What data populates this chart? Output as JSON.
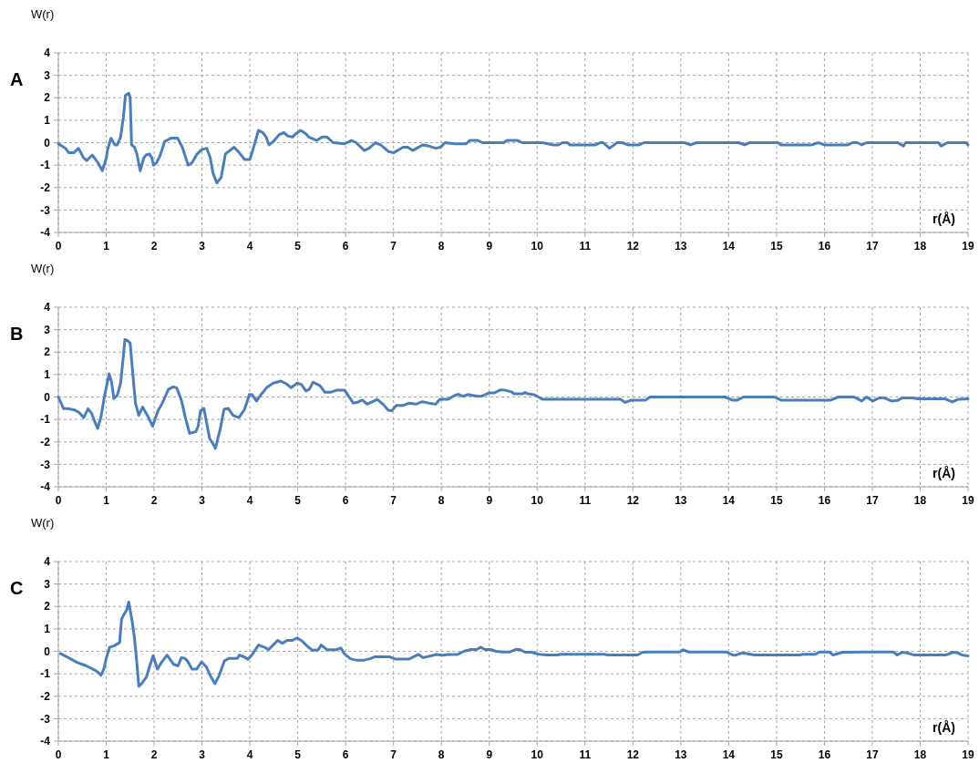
{
  "chart_data": [
    {
      "type": "line",
      "title": "A",
      "xlabel": "r(Å)",
      "ylabel": "W(r)",
      "xlim": [
        0,
        19
      ],
      "xticks": [
        0,
        1,
        2,
        3,
        4,
        5,
        6,
        7,
        8,
        9,
        10,
        11,
        12,
        13,
        14,
        15,
        16,
        17,
        18,
        19
      ],
      "ylim": [
        -4,
        4
      ],
      "yticks": [
        -4,
        -3,
        -2,
        -1,
        0,
        1,
        2,
        3,
        4
      ],
      "grid": true,
      "marker": "none",
      "line_style": "solid",
      "series": [
        {
          "color": "#4a7ebb",
          "x": [
            0,
            0.15,
            0.22,
            0.32,
            0.42,
            0.52,
            0.59,
            0.71,
            0.83,
            0.92,
            1.0,
            1.03,
            1.1,
            1.18,
            1.23,
            1.3,
            1.36,
            1.4,
            1.47,
            1.5,
            1.53,
            1.59,
            1.64,
            1.71,
            1.78,
            1.83,
            1.9,
            1.95,
            1.99,
            2.05,
            2.13,
            2.22,
            2.35,
            2.49,
            2.59,
            2.71,
            2.79,
            2.9,
            3.0,
            3.1,
            3.17,
            3.23,
            3.31,
            3.4,
            3.49,
            3.67,
            3.78,
            3.89,
            4.0,
            4.08,
            4.18,
            4.27,
            4.34,
            4.4,
            4.49,
            4.61,
            4.71,
            4.79,
            4.89,
            4.96,
            5.06,
            5.17,
            5.23,
            5.4,
            5.51,
            5.61,
            5.74,
            5.98,
            6.12,
            6.22,
            6.39,
            6.49,
            6.62,
            6.73,
            6.9,
            7.0,
            7.2,
            7.3,
            7.4,
            7.61,
            7.74,
            7.88,
            7.98,
            8.08,
            8.29,
            8.52,
            8.59,
            8.76,
            8.86,
            9.17,
            9.3,
            9.37,
            9.59,
            9.69,
            10.11,
            10.34,
            10.44,
            10.53,
            10.63,
            10.69,
            11.22,
            11.32,
            11.38,
            11.51,
            11.67,
            11.77,
            11.9,
            12.13,
            12.23,
            12.33,
            13.07,
            13.2,
            13.33,
            13.49,
            13.56,
            14.21,
            14.33,
            14.44,
            14.83,
            15.03,
            15.09,
            15.74,
            15.87,
            16.0,
            16.49,
            16.59,
            16.69,
            16.78,
            16.88,
            17.53,
            17.65,
            17.7,
            18.38,
            18.44,
            18.57,
            18.96,
            19
          ],
          "values": [
            -0.05,
            -0.25,
            -0.45,
            -0.45,
            -0.25,
            -0.65,
            -0.8,
            -0.55,
            -0.9,
            -1.25,
            -0.7,
            -0.3,
            0.2,
            -0.1,
            -0.1,
            0.25,
            1.15,
            2.1,
            2.2,
            2.0,
            -0.1,
            -0.2,
            -0.5,
            -1.25,
            -0.7,
            -0.55,
            -0.5,
            -0.65,
            -1.0,
            -0.9,
            -0.55,
            0.05,
            0.2,
            0.2,
            -0.2,
            -1.0,
            -0.9,
            -0.5,
            -0.3,
            -0.25,
            -0.65,
            -1.35,
            -1.8,
            -1.55,
            -0.5,
            -0.2,
            -0.45,
            -0.75,
            -0.75,
            -0.2,
            0.55,
            0.45,
            0.25,
            -0.1,
            0.05,
            0.35,
            0.45,
            0.3,
            0.25,
            0.4,
            0.55,
            0.4,
            0.25,
            0.1,
            0.25,
            0.25,
            0.0,
            -0.05,
            0.1,
            0.0,
            -0.35,
            -0.25,
            0.0,
            -0.1,
            -0.4,
            -0.45,
            -0.2,
            -0.2,
            -0.35,
            -0.1,
            -0.15,
            -0.25,
            -0.2,
            0.0,
            -0.05,
            -0.05,
            0.1,
            0.1,
            0.0,
            0.0,
            0.0,
            0.1,
            0.1,
            0.0,
            0.0,
            -0.1,
            -0.1,
            0.0,
            0.0,
            -0.1,
            -0.1,
            0.0,
            0.0,
            -0.25,
            0.0,
            0.0,
            -0.1,
            -0.1,
            0.0,
            0.0,
            0.0,
            -0.1,
            0.0,
            0.0,
            0.0,
            0.0,
            -0.1,
            0.0,
            0.0,
            0.0,
            -0.1,
            -0.1,
            0.0,
            -0.1,
            -0.1,
            0.0,
            0.0,
            -0.1,
            0.0,
            0.0,
            -0.15,
            0.0,
            0.0,
            -0.15,
            0.0,
            0.0,
            -0.1
          ]
        }
      ]
    },
    {
      "type": "line",
      "title": "B",
      "xlabel": "r(Å)",
      "ylabel": "W(r)",
      "xlim": [
        0,
        19
      ],
      "xticks": [
        0,
        1,
        2,
        3,
        4,
        5,
        6,
        7,
        8,
        9,
        10,
        11,
        12,
        13,
        14,
        15,
        16,
        17,
        18,
        19
      ],
      "ylim": [
        -4,
        4
      ],
      "yticks": [
        -4,
        -3,
        -2,
        -1,
        0,
        1,
        2,
        3,
        4
      ],
      "grid": true,
      "marker": "none",
      "line_style": "solid",
      "series": [
        {
          "color": "#4a7ebb",
          "x": [
            0,
            0.11,
            0.2,
            0.34,
            0.44,
            0.53,
            0.62,
            0.7,
            0.74,
            0.82,
            0.89,
            0.96,
            1.06,
            1.11,
            1.16,
            1.23,
            1.3,
            1.34,
            1.39,
            1.45,
            1.5,
            1.55,
            1.61,
            1.68,
            1.76,
            1.86,
            1.97,
            2.08,
            2.16,
            2.3,
            2.4,
            2.47,
            2.57,
            2.65,
            2.74,
            2.87,
            2.92,
            2.97,
            3.04,
            3.11,
            3.16,
            3.24,
            3.28,
            3.38,
            3.46,
            3.55,
            3.65,
            3.77,
            3.89,
            3.99,
            4.05,
            4.14,
            4.22,
            4.36,
            4.49,
            4.65,
            4.76,
            4.86,
            4.99,
            5.08,
            5.17,
            5.24,
            5.32,
            5.46,
            5.57,
            5.68,
            5.81,
            5.98,
            6.16,
            6.25,
            6.35,
            6.45,
            6.66,
            6.79,
            6.89,
            6.96,
            7.06,
            7.2,
            7.33,
            7.47,
            7.6,
            7.74,
            7.88,
            7.97,
            8.14,
            8.28,
            8.36,
            8.45,
            8.55,
            8.65,
            8.76,
            8.85,
            8.99,
            9.1,
            9.24,
            9.33,
            9.46,
            9.52,
            9.68,
            9.75,
            9.81,
            9.94,
            10.11,
            11.74,
            11.84,
            11.97,
            12.26,
            12.36,
            12.59,
            13.92,
            14.08,
            14.18,
            14.31,
            14.96,
            15.09,
            16.13,
            16.29,
            16.62,
            16.78,
            16.88,
            17.01,
            17.14,
            17.24,
            17.4,
            17.53,
            17.63,
            17.83,
            17.96,
            18.51,
            18.67,
            18.8,
            19
          ],
          "values": [
            0,
            -0.52,
            -0.52,
            -0.58,
            -0.7,
            -0.92,
            -0.52,
            -0.75,
            -1.0,
            -1.4,
            -0.9,
            0.0,
            1.03,
            0.68,
            -0.07,
            0.07,
            0.62,
            1.44,
            2.56,
            2.5,
            2.4,
            1.16,
            -0.27,
            -0.82,
            -0.45,
            -0.82,
            -1.3,
            -0.62,
            -0.32,
            0.34,
            0.45,
            0.41,
            -0.14,
            -0.89,
            -1.62,
            -1.55,
            -1.3,
            -0.62,
            -0.51,
            -1.3,
            -1.85,
            -2.12,
            -2.29,
            -1.44,
            -0.55,
            -0.51,
            -0.82,
            -0.92,
            -0.55,
            0.11,
            0.1,
            -0.18,
            0.07,
            0.44,
            0.62,
            0.71,
            0.59,
            0.41,
            0.62,
            0.55,
            0.27,
            0.34,
            0.66,
            0.51,
            0.21,
            0.21,
            0.3,
            0.3,
            -0.27,
            -0.23,
            -0.14,
            -0.32,
            -0.11,
            -0.34,
            -0.59,
            -0.62,
            -0.38,
            -0.38,
            -0.27,
            -0.32,
            -0.21,
            -0.27,
            -0.32,
            -0.1,
            -0.1,
            0.07,
            0.12,
            0.03,
            0.11,
            0.07,
            0.03,
            0.04,
            0.18,
            0.18,
            0.32,
            0.3,
            0.23,
            0.14,
            0.14,
            0.2,
            0.14,
            0.1,
            -0.1,
            -0.1,
            -0.24,
            -0.14,
            -0.14,
            0,
            0,
            0,
            -0.14,
            -0.14,
            0,
            0,
            -0.14,
            -0.14,
            0,
            0,
            -0.18,
            0,
            -0.18,
            -0.04,
            -0.04,
            -0.18,
            -0.15,
            -0.04,
            -0.04,
            -0.08,
            -0.08,
            -0.22,
            -0.1,
            -0.08
          ]
        }
      ]
    },
    {
      "type": "line",
      "title": "C",
      "xlabel": "r(Å)",
      "ylabel": "W(r)",
      "xlim": [
        0,
        19
      ],
      "xticks": [
        0,
        1,
        2,
        3,
        4,
        5,
        6,
        7,
        8,
        9,
        10,
        11,
        12,
        13,
        14,
        15,
        16,
        17,
        18,
        19
      ],
      "ylim": [
        -4,
        4
      ],
      "yticks": [
        -4,
        -3,
        -2,
        -1,
        0,
        1,
        2,
        3,
        4
      ],
      "grid": true,
      "marker": "none",
      "line_style": "solid",
      "series": [
        {
          "color": "#4a7ebb",
          "x": [
            0.04,
            0.19,
            0.39,
            0.59,
            0.78,
            0.83,
            0.89,
            0.95,
            1.0,
            1.07,
            1.17,
            1.28,
            1.32,
            1.37,
            1.43,
            1.47,
            1.54,
            1.59,
            1.64,
            1.68,
            1.74,
            1.84,
            1.91,
            1.98,
            2.07,
            2.15,
            2.27,
            2.41,
            2.5,
            2.57,
            2.64,
            2.7,
            2.79,
            2.89,
            2.99,
            3.09,
            3.18,
            3.27,
            3.36,
            3.47,
            3.57,
            3.74,
            3.78,
            3.87,
            3.96,
            4.04,
            4.18,
            4.31,
            4.39,
            4.58,
            4.68,
            4.78,
            4.89,
            4.99,
            5.09,
            5.19,
            5.31,
            5.43,
            5.49,
            5.61,
            5.8,
            5.9,
            5.97,
            6.1,
            6.24,
            6.37,
            6.51,
            6.61,
            6.91,
            7.05,
            7.32,
            7.52,
            7.62,
            7.76,
            7.89,
            8.03,
            8.13,
            8.34,
            8.47,
            8.61,
            8.74,
            8.82,
            8.91,
            9.04,
            9.14,
            9.3,
            9.43,
            9.56,
            9.65,
            9.75,
            9.88,
            10.04,
            10.2,
            10.43,
            10.49,
            11.41,
            11.47,
            12.1,
            12.2,
            12.33,
            12.98,
            13.05,
            13.17,
            13.95,
            14.08,
            14.15,
            14.28,
            14.54,
            15.48,
            15.55,
            15.81,
            15.9,
            16.1,
            16.18,
            16.33,
            16.4,
            16.82,
            17.44,
            17.52,
            17.63,
            17.73,
            17.86,
            18.54,
            18.69,
            18.78,
            18.87,
            19
          ],
          "values": [
            -0.1,
            -0.26,
            -0.49,
            -0.65,
            -0.86,
            -0.93,
            -1.07,
            -0.79,
            -0.31,
            0.18,
            0.25,
            0.39,
            1.43,
            1.64,
            1.85,
            2.19,
            1.36,
            0.6,
            -0.51,
            -1.56,
            -1.44,
            -1.14,
            -0.65,
            -0.19,
            -0.79,
            -0.51,
            -0.17,
            -0.58,
            -0.65,
            -0.28,
            -0.31,
            -0.44,
            -0.79,
            -0.79,
            -0.47,
            -0.69,
            -1.11,
            -1.44,
            -1.07,
            -0.42,
            -0.31,
            -0.31,
            -0.17,
            -0.24,
            -0.35,
            -0.17,
            0.28,
            0.18,
            0.07,
            0.49,
            0.36,
            0.49,
            0.49,
            0.6,
            0.46,
            0.25,
            0.04,
            0.07,
            0.28,
            0.07,
            0.07,
            0.15,
            -0.1,
            -0.33,
            -0.4,
            -0.4,
            -0.33,
            -0.24,
            -0.24,
            -0.35,
            -0.35,
            -0.14,
            -0.28,
            -0.21,
            -0.14,
            -0.17,
            -0.14,
            -0.14,
            0.0,
            0.08,
            0.08,
            0.18,
            0.08,
            0.08,
            0.0,
            -0.03,
            -0.03,
            0.09,
            0.07,
            -0.04,
            -0.04,
            -0.13,
            -0.16,
            -0.16,
            -0.13,
            -0.13,
            -0.16,
            -0.16,
            -0.04,
            -0.03,
            -0.03,
            0.07,
            -0.03,
            -0.03,
            -0.16,
            -0.17,
            -0.07,
            -0.16,
            -0.16,
            -0.13,
            -0.13,
            -0.03,
            -0.03,
            -0.16,
            -0.07,
            -0.04,
            -0.03,
            -0.03,
            -0.16,
            -0.04,
            -0.07,
            -0.16,
            -0.16,
            -0.04,
            -0.07,
            -0.16,
            -0.2
          ]
        }
      ]
    }
  ]
}
